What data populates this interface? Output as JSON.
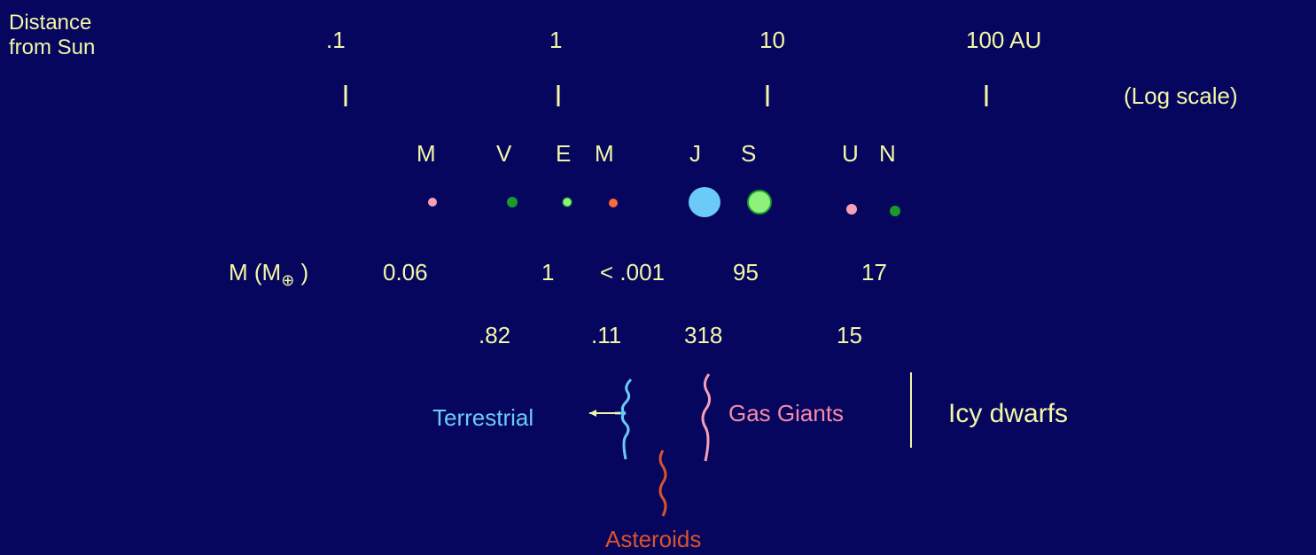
{
  "axis": {
    "label": [
      "Distance",
      "from Sun"
    ],
    "ticks": [
      ".1",
      "1",
      "10",
      "100 AU"
    ],
    "note": "(Log scale)"
  },
  "planets": [
    "M",
    "V",
    "E",
    "M",
    "J",
    "S",
    "U",
    "N"
  ],
  "mass": {
    "label": "M (M",
    "symbol": "⊕",
    "label_end": ")",
    "row1": [
      "0.06",
      "1",
      "< .001",
      "95",
      "17"
    ],
    "row2": [
      ".82",
      ".11",
      "318",
      "15"
    ]
  },
  "groups": {
    "terrestrial": "Terrestrial",
    "gas_giants": "Gas Giants",
    "icy_dwarfs": "Icy dwarfs",
    "asteroids": "Asteroids"
  }
}
